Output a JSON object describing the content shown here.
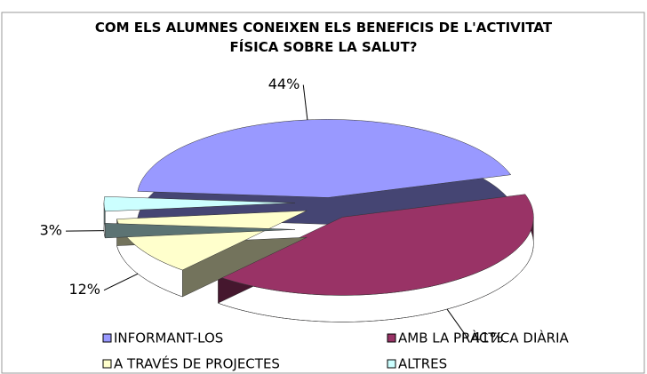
{
  "chart_data": {
    "type": "pie",
    "title": "COM ELS ALUMNES CONEIXEN ELS BENEFICIS DE L'ACTIVITAT FÍSICA SOBRE LA SALUT?",
    "categories": [
      "INFORMANT-LOS",
      "AMB LA PRÀCTICA DIÀRIA",
      "A TRAVÉS DE PROJECTES",
      "ALTRES"
    ],
    "values": [
      44,
      41,
      12,
      3
    ],
    "value_labels": [
      "44%",
      "41%",
      "12%",
      "3%"
    ],
    "colors": [
      "#9999ff",
      "#993366",
      "#ffffcc",
      "#ccffff"
    ],
    "legend": "bottom"
  }
}
